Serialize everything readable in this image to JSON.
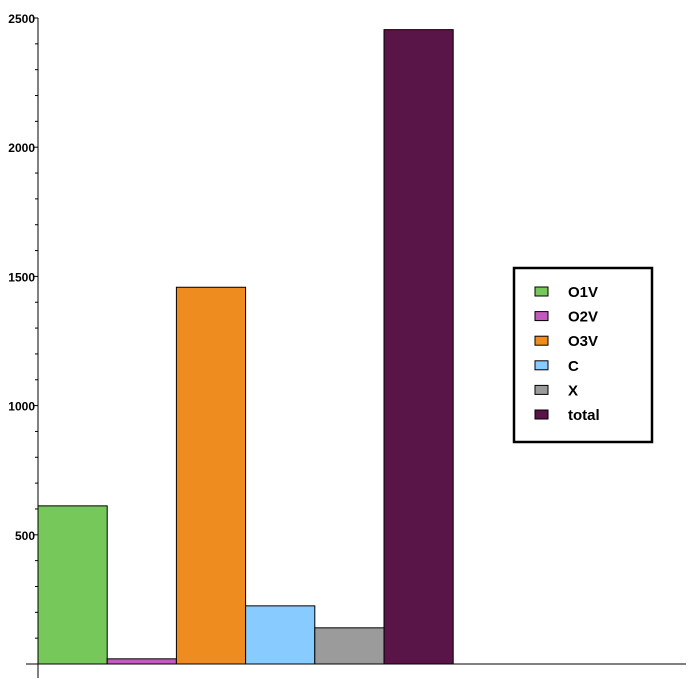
{
  "chart_data": {
    "type": "bar",
    "categories": [
      "O1V",
      "O2V",
      "O3V",
      "C",
      "X",
      "total"
    ],
    "values": [
      612,
      20,
      1458,
      225,
      140,
      2455
    ],
    "colors": [
      "#77c85a",
      "#c35bbf",
      "#ef8c20",
      "#88ccff",
      "#9b9b9b",
      "#5a1548"
    ],
    "title": "",
    "xlabel": "",
    "ylabel": "",
    "ylim": [
      0,
      2500
    ],
    "yticks": [
      500,
      1000,
      1500,
      2000,
      2500
    ],
    "minor_tick_step": 100,
    "grid": false,
    "legend": {
      "position": "right",
      "entries": [
        "O1V",
        "O2V",
        "O3V",
        "C",
        "X",
        "total"
      ]
    }
  }
}
